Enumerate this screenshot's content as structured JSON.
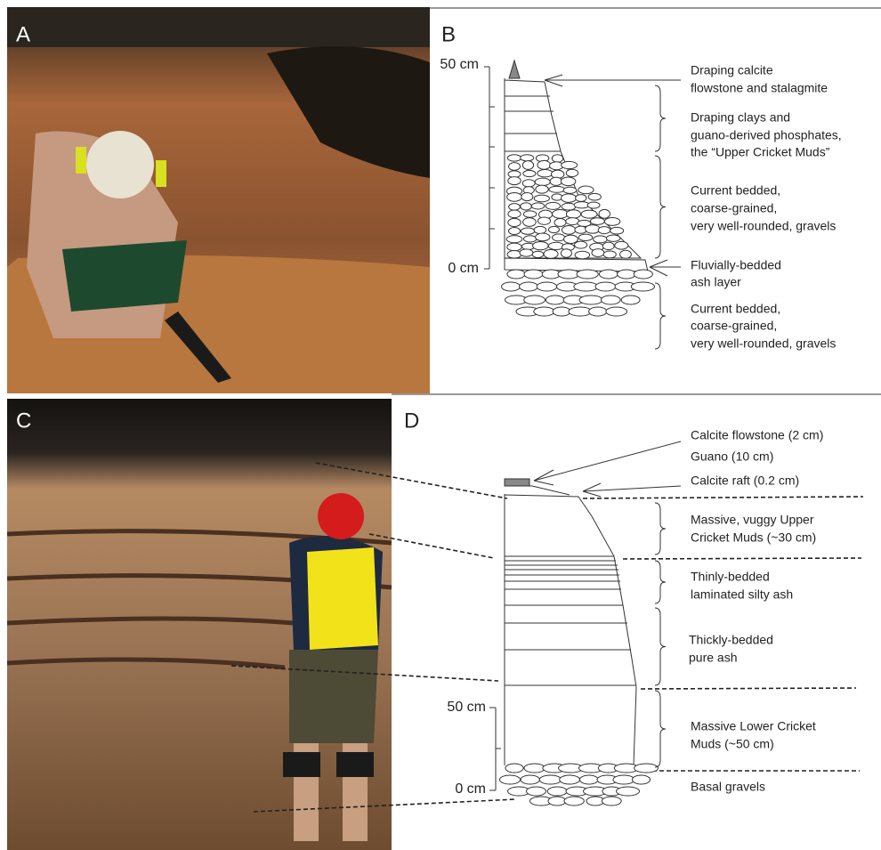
{
  "panel_a": {
    "label": "A"
  },
  "panel_b": {
    "label": "B",
    "scale": [
      "50 cm",
      "0 cm"
    ],
    "annotations": [
      {
        "lines": [
          "Draping calcite",
          "flowstone and stalagmite"
        ]
      },
      {
        "lines": [
          "Draping clays and",
          "guano-derived phosphates,",
          "the “Upper Cricket Muds”"
        ]
      },
      {
        "lines": [
          "Current bedded,",
          "coarse-grained,",
          "very well-rounded, gravels"
        ]
      },
      {
        "lines": [
          "Fluvially-bedded",
          "ash layer"
        ]
      },
      {
        "lines": [
          "Current bedded,",
          "coarse-grained,",
          "very well-rounded, gravels"
        ]
      }
    ]
  },
  "panel_c": {
    "label": "C"
  },
  "panel_d": {
    "label": "D",
    "scale": [
      "50 cm",
      "0 cm"
    ],
    "annotations": [
      {
        "lines": [
          "Calcite flowstone (2 cm)"
        ]
      },
      {
        "lines": [
          "Guano (10 cm)"
        ]
      },
      {
        "lines": [
          "Calcite raft (0.2 cm)"
        ]
      },
      {
        "lines": [
          "Massive, vuggy Upper",
          "Cricket Muds (~30 cm)"
        ]
      },
      {
        "lines": [
          "Thinly-bedded",
          "laminated silty ash"
        ]
      },
      {
        "lines": [
          "Thickly-bedded",
          "pure ash"
        ]
      },
      {
        "lines": [
          "Massive Lower Cricket",
          "Muds (~50 cm)"
        ]
      },
      {
        "lines": [
          "Basal gravels"
        ]
      }
    ]
  }
}
